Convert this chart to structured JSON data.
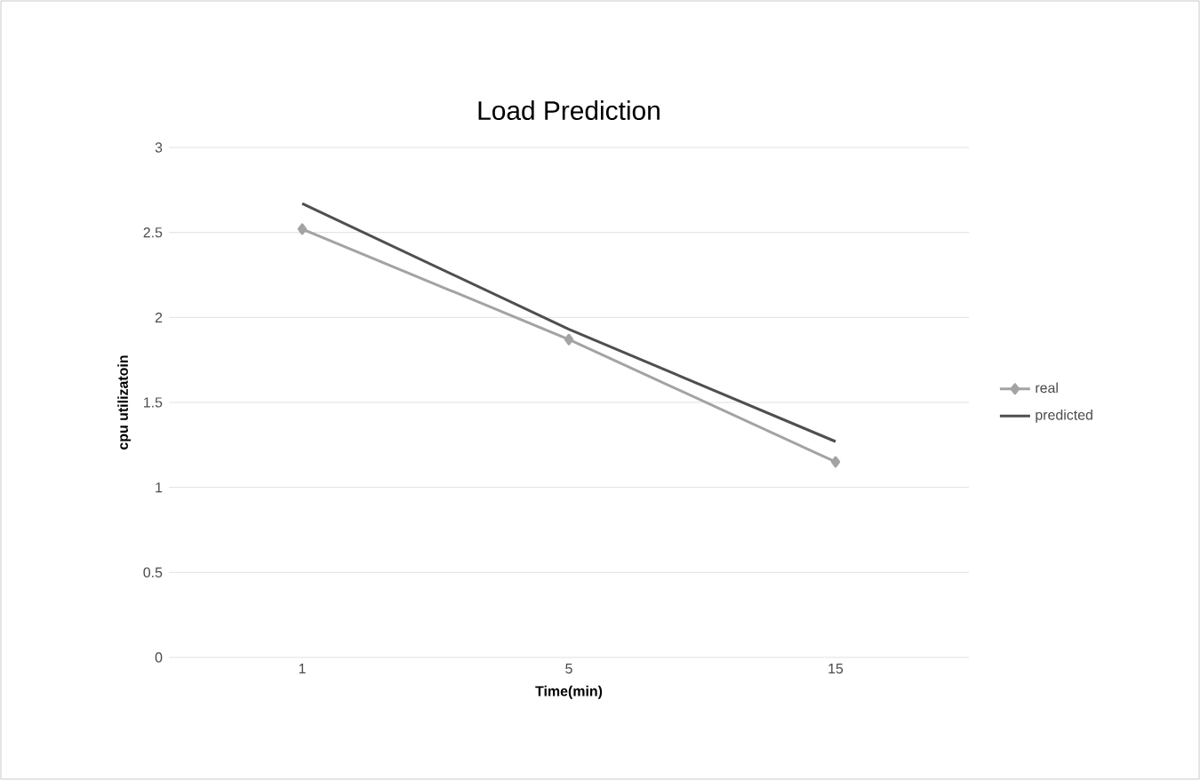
{
  "chart_data": {
    "type": "line",
    "title": "Load Prediction",
    "xlabel": "Time(min)",
    "ylabel": "cpu utilizatoin",
    "categories": [
      "1",
      "5",
      "15"
    ],
    "series": [
      {
        "name": "real",
        "color": "#a3a3a3",
        "values": [
          2.52,
          1.87,
          1.15
        ],
        "marker": "diamond"
      },
      {
        "name": "predicted",
        "color": "#4f4f4f",
        "values": [
          2.67,
          1.93,
          1.27
        ],
        "marker": "none"
      }
    ],
    "ylim": [
      0,
      3
    ],
    "yticks": [
      0,
      0.5,
      1,
      1.5,
      2,
      2.5,
      3
    ],
    "grid": "y",
    "legend": "right"
  }
}
